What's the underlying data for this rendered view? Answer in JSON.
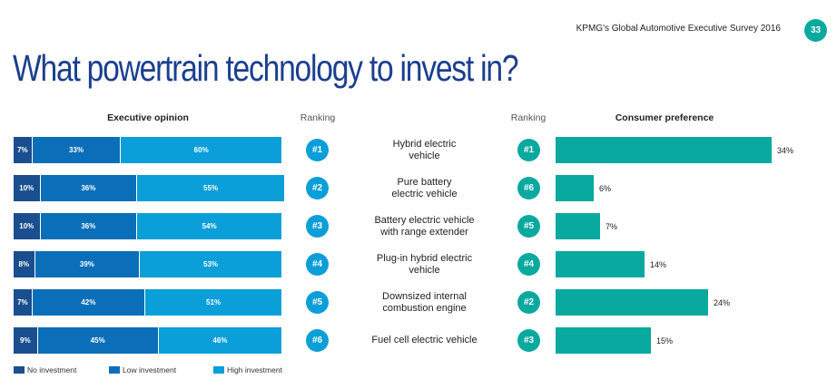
{
  "header": {
    "publication": "KPMG's Global Automotive Executive Survey 2016",
    "page_number": "33"
  },
  "title": "What powertrain technology to invest in?",
  "chart_data": [
    {
      "type": "bar",
      "stacked": true,
      "orientation": "horizontal",
      "title": "Executive opinion",
      "categories": [
        "Hybrid electric vehicle",
        "Pure battery electric vehicle",
        "Battery electric vehicle with range extender",
        "Plug-in hybrid electric vehicle",
        "Downsized internal combustion engine",
        "Fuel cell electric vehicle"
      ],
      "series": [
        {
          "name": "No investment",
          "color": "#1a4f8f",
          "values": [
            7,
            10,
            10,
            8,
            7,
            9
          ]
        },
        {
          "name": "Low investment",
          "color": "#0a6fb8",
          "values": [
            33,
            36,
            36,
            39,
            42,
            45
          ]
        },
        {
          "name": "High investment",
          "color": "#0a9fd8",
          "values": [
            60,
            55,
            54,
            53,
            51,
            46
          ]
        }
      ],
      "ranking_label": "Ranking",
      "ranking": [
        "#1",
        "#2",
        "#3",
        "#4",
        "#5",
        "#6"
      ],
      "xlim": [
        0,
        100
      ],
      "legend": "bottom"
    },
    {
      "type": "bar",
      "orientation": "horizontal",
      "title": "Consumer preference",
      "color": "#0aa9a0",
      "ranking_label": "Ranking",
      "ranking": [
        "#1",
        "#6",
        "#5",
        "#4",
        "#2",
        "#3"
      ],
      "values": [
        34,
        6,
        7,
        14,
        24,
        15
      ]
    }
  ],
  "labels_display": [
    [
      "Hybrid electric",
      "vehicle"
    ],
    [
      "Pure battery",
      "electric vehicle"
    ],
    [
      "Battery electric vehicle",
      "with range extender"
    ],
    [
      "Plug-in hybrid electric",
      "vehicle"
    ],
    [
      "Downsized internal",
      "combustion engine"
    ],
    [
      "Fuel cell electric vehicle"
    ]
  ]
}
